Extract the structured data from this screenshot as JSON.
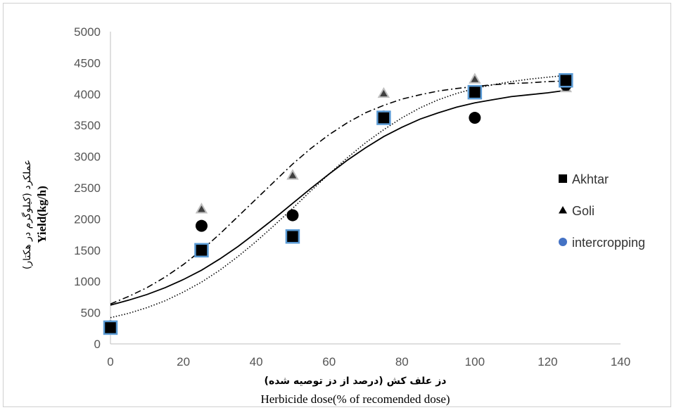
{
  "chart_data": {
    "type": "scatter",
    "xlabel": "Herbicide  dose(% of recomended dose)",
    "xlabel_persian": "دز علف کش (درصد از دز توصیه شده)",
    "ylabel": "Yield(kg/h)",
    "ylabel_persian": "عملکرد (کیلوگرم در هکتار)",
    "xlim": [
      0,
      140
    ],
    "ylim": [
      0,
      5000
    ],
    "xticks": [
      "0",
      "20",
      "40",
      "60",
      "80",
      "100",
      "120",
      "140"
    ],
    "yticks": [
      "0",
      "500",
      "1000",
      "1500",
      "2000",
      "2500",
      "3000",
      "3500",
      "4000",
      "4500",
      "5000"
    ],
    "grid": false,
    "legend_position": "right",
    "series": [
      {
        "name": "Akhtar",
        "marker": "square",
        "color": "#000000",
        "edge_color": "#5b9bd5",
        "curve_style": "solid",
        "x": [
          0,
          25,
          50,
          75,
          100,
          125
        ],
        "y": [
          260,
          1500,
          1720,
          3620,
          4030,
          4220
        ],
        "fit": [
          [
            0,
            620
          ],
          [
            5,
            700
          ],
          [
            10,
            790
          ],
          [
            15,
            900
          ],
          [
            20,
            1030
          ],
          [
            25,
            1180
          ],
          [
            30,
            1360
          ],
          [
            35,
            1560
          ],
          [
            40,
            1780
          ],
          [
            45,
            2010
          ],
          [
            50,
            2250
          ],
          [
            55,
            2490
          ],
          [
            60,
            2720
          ],
          [
            65,
            2940
          ],
          [
            70,
            3140
          ],
          [
            75,
            3320
          ],
          [
            80,
            3470
          ],
          [
            85,
            3600
          ],
          [
            90,
            3700
          ],
          [
            95,
            3790
          ],
          [
            100,
            3860
          ],
          [
            105,
            3910
          ],
          [
            110,
            3960
          ],
          [
            115,
            3990
          ],
          [
            120,
            4020
          ],
          [
            125,
            4060
          ]
        ]
      },
      {
        "name": "Goli",
        "marker": "triangle",
        "color": "#404040",
        "edge_color": "#bfbfbf",
        "curve_style": "dashdot",
        "x": [
          0,
          25,
          50,
          75,
          100,
          125
        ],
        "y": [
          300,
          2160,
          2700,
          4010,
          4240,
          4100
        ],
        "fit": [
          [
            0,
            640
          ],
          [
            5,
            760
          ],
          [
            10,
            900
          ],
          [
            15,
            1070
          ],
          [
            20,
            1270
          ],
          [
            25,
            1500
          ],
          [
            30,
            1760
          ],
          [
            35,
            2040
          ],
          [
            40,
            2320
          ],
          [
            45,
            2600
          ],
          [
            50,
            2880
          ],
          [
            55,
            3130
          ],
          [
            60,
            3350
          ],
          [
            65,
            3540
          ],
          [
            70,
            3700
          ],
          [
            75,
            3820
          ],
          [
            80,
            3920
          ],
          [
            85,
            3990
          ],
          [
            90,
            4050
          ],
          [
            95,
            4090
          ],
          [
            100,
            4120
          ],
          [
            105,
            4150
          ],
          [
            110,
            4170
          ],
          [
            115,
            4180
          ],
          [
            120,
            4200
          ],
          [
            125,
            4210
          ]
        ]
      },
      {
        "name": "intercropping",
        "marker": "circle",
        "color": "#000000",
        "legend_color": "#4472c4",
        "curve_style": "dotted",
        "x": [
          0,
          25,
          50,
          75,
          100,
          125
        ],
        "y": [
          280,
          1890,
          2060,
          3640,
          3620,
          4150
        ],
        "fit": [
          [
            0,
            420
          ],
          [
            5,
            490
          ],
          [
            10,
            580
          ],
          [
            15,
            690
          ],
          [
            20,
            830
          ],
          [
            25,
            990
          ],
          [
            30,
            1180
          ],
          [
            35,
            1400
          ],
          [
            40,
            1640
          ],
          [
            45,
            1900
          ],
          [
            50,
            2170
          ],
          [
            55,
            2450
          ],
          [
            60,
            2720
          ],
          [
            65,
            2980
          ],
          [
            70,
            3220
          ],
          [
            75,
            3430
          ],
          [
            80,
            3620
          ],
          [
            85,
            3780
          ],
          [
            90,
            3910
          ],
          [
            95,
            4010
          ],
          [
            100,
            4090
          ],
          [
            105,
            4150
          ],
          [
            110,
            4200
          ],
          [
            115,
            4240
          ],
          [
            120,
            4270
          ],
          [
            125,
            4300
          ]
        ]
      }
    ]
  }
}
